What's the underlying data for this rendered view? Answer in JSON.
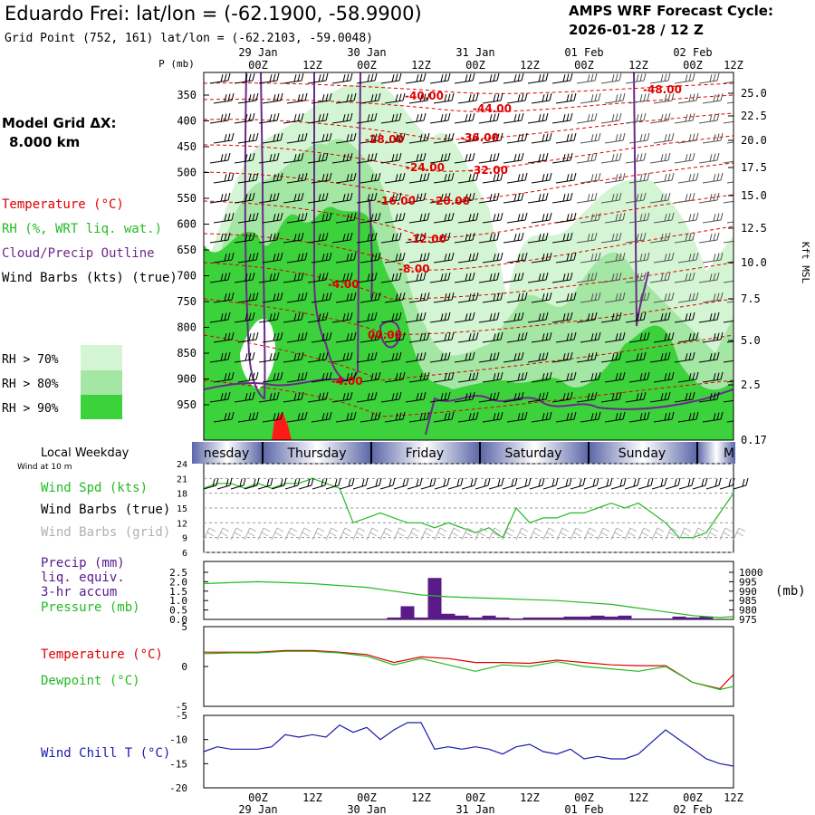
{
  "header": {
    "title": "Eduardo Frei:  lat/lon = (-62.1900, -58.9900)",
    "subtitle": "Grid Point (752, 161) lat/lon = (-62.2103, -59.0048)",
    "cycle_label": "AMPS WRF Forecast Cycle:",
    "cycle_value": "2026-01-28 / 12  Z"
  },
  "left": {
    "pmb_label": "P (mb)",
    "grid_title": "Model Grid ΔX:",
    "grid_value": "8.000 km",
    "leg_temp": "Temperature (°C)",
    "leg_rh": "RH (%, WRT liq. wat.)",
    "leg_cloud": "Cloud/Precip Outline",
    "leg_wind": "Wind Barbs (kts) (true)",
    "rh70": "RH > 70%",
    "rh80": "RH > 80%",
    "rh90": "RH > 90%"
  },
  "colors": {
    "rh70": "#d4f5d4",
    "rh80": "#a4e6a4",
    "rh90": "#3cd23c",
    "temp": "#e00000",
    "cloud": "#6a2a8a",
    "precip": "#5a1a8a",
    "wind_true": "#000000",
    "wind_grid": "#b0b0b0",
    "spd": "#22bb22",
    "dew": "#22bb22",
    "chill": "#1a1aaa",
    "band": "#5a66a8"
  },
  "time_axis": {
    "ticks": [
      "00Z",
      "12Z",
      "00Z",
      "12Z",
      "00Z",
      "12Z",
      "00Z",
      "12Z",
      "00Z",
      "12Z"
    ],
    "dates_top": [
      "29 Jan",
      "30 Jan",
      "31 Jan",
      "01 Feb",
      "02 Feb"
    ],
    "dates_bottom": [
      "29 Jan",
      "30 Jan",
      "31 Jan",
      "01 Feb",
      "02 Feb"
    ]
  },
  "weekday": {
    "label": "Local Weekday",
    "wind10": "Wind at 10 m",
    "days": [
      "nesday",
      "Thursday",
      "Friday",
      "Saturday",
      "Sunday",
      "M"
    ]
  },
  "panels": {
    "wind_spd": "Wind Spd (kts)",
    "wind_true": "Wind Barbs (true)",
    "wind_grid": "Wind Barbs (grid)",
    "precip1": "Precip (mm)",
    "precip2": "liq. equiv.",
    "precip3": "3-hr accum",
    "pressure": "Pressure (mb)",
    "mb_unit": "(mb)",
    "temperature": "Temperature (°C)",
    "dewpoint": "Dewpoint (°C)",
    "chill": "Wind Chill T (°C)",
    "kft": "Kft MSL"
  },
  "chart_data": [
    {
      "type": "heatmap",
      "title": "Vertical cross-section: Temperature, RH, cloud outline, wind barbs",
      "y_pressure_ticks": [
        "350",
        "400",
        "450",
        "500",
        "550",
        "600",
        "650",
        "700",
        "750",
        "800",
        "850",
        "900",
        "950"
      ],
      "y_height_ticks": [
        "25.0",
        "22.5",
        "20.0",
        "17.5",
        "15.0",
        "12.5",
        "10.0",
        "7.5",
        "5.0",
        "2.5",
        "0.17"
      ],
      "temperature_contour_labels": [
        "-40.00",
        "-44.00",
        "-48.00",
        "-28.00",
        "-36.00",
        "-24.00",
        "-32.00",
        "-16.00",
        "-20.00",
        "-12.00",
        "-8.00",
        "-4.00",
        "00.00",
        "-4.00"
      ]
    },
    {
      "type": "line",
      "title": "Wind Spd (kts)",
      "ylim": [
        6,
        24
      ],
      "y_ticks": [
        "24",
        "21",
        "18",
        "15",
        "12",
        "9",
        "6"
      ],
      "x_hours": [
        0,
        3,
        6,
        9,
        12,
        15,
        18,
        21,
        24,
        27,
        30,
        33,
        36,
        39,
        42,
        45,
        48,
        51,
        54,
        57,
        60,
        63,
        66,
        69,
        72,
        75,
        78,
        81,
        84,
        87,
        90,
        93,
        96,
        99,
        102,
        105,
        108,
        111,
        114,
        117
      ],
      "values": [
        19,
        20,
        20,
        19,
        20,
        19,
        20,
        20,
        21,
        20,
        19,
        12,
        13,
        14,
        13,
        12,
        12,
        11,
        12,
        11,
        10,
        11,
        9,
        15,
        12,
        13,
        13,
        14,
        14,
        15,
        16,
        15,
        16,
        14,
        12,
        9,
        9,
        10,
        14,
        18
      ]
    },
    {
      "type": "bar",
      "title": "Precip (mm) liq. equiv. 3-hr accum / Pressure (mb)",
      "precip_ylim": [
        0,
        2.5
      ],
      "precip_ticks": [
        "2.5",
        "2.0",
        "1.5",
        "1.0",
        "0.5",
        "0.0"
      ],
      "pressure_ylim": [
        975,
        1000
      ],
      "pressure_ticks": [
        "1000",
        "995",
        "990",
        "985",
        "980",
        "975"
      ],
      "precip_hours": [
        42,
        45,
        48,
        51,
        54,
        57,
        60,
        63,
        66,
        69,
        72,
        75,
        78,
        81,
        84,
        87,
        90,
        93,
        96,
        99,
        102,
        105,
        108,
        111
      ],
      "precip_values": [
        0.1,
        0.7,
        0.1,
        2.2,
        0.3,
        0.2,
        0.1,
        0.2,
        0.1,
        0.05,
        0.1,
        0.1,
        0.1,
        0.15,
        0.15,
        0.2,
        0.15,
        0.2,
        0.05,
        0.05,
        0.05,
        0.15,
        0.1,
        0.15
      ],
      "pressure_hours": [
        0,
        6,
        12,
        18,
        24,
        30,
        36,
        42,
        48,
        54,
        60,
        66,
        72,
        78,
        84,
        90,
        96,
        102,
        108,
        114,
        117
      ],
      "pressure_values": [
        994,
        994.5,
        995,
        994.5,
        994,
        993,
        992,
        990,
        988,
        987,
        986.5,
        986,
        985.5,
        985,
        984,
        983,
        981,
        979,
        977,
        976,
        976.5
      ]
    },
    {
      "type": "line",
      "title": "Temperature / Dewpoint (°C)",
      "ylim": [
        -5,
        5
      ],
      "y_ticks": [
        "5",
        "0",
        "-5"
      ],
      "x_hours": [
        0,
        6,
        12,
        18,
        24,
        30,
        36,
        42,
        48,
        54,
        60,
        66,
        72,
        78,
        84,
        90,
        96,
        102,
        108,
        114,
        117
      ],
      "temperature": [
        1.8,
        1.8,
        1.8,
        2.0,
        2.0,
        1.8,
        1.5,
        0.5,
        1.2,
        1.0,
        0.5,
        0.5,
        0.4,
        0.8,
        0.5,
        0.2,
        0.1,
        0.1,
        -2.0,
        -2.8,
        -1.0
      ],
      "dewpoint": [
        1.6,
        1.7,
        1.7,
        1.9,
        1.9,
        1.7,
        1.3,
        0.2,
        1.0,
        0.2,
        -0.6,
        0.2,
        0.0,
        0.6,
        0.0,
        -0.3,
        -0.6,
        0.0,
        -2.0,
        -2.9,
        -2.5
      ]
    },
    {
      "type": "line",
      "title": "Wind Chill T (°C)",
      "ylim": [
        -20,
        -5
      ],
      "y_ticks": [
        "-5",
        "-10",
        "-15",
        "-20"
      ],
      "x_hours": [
        0,
        3,
        6,
        9,
        12,
        15,
        18,
        21,
        24,
        27,
        30,
        33,
        36,
        39,
        42,
        45,
        48,
        51,
        54,
        57,
        60,
        63,
        66,
        69,
        72,
        75,
        78,
        81,
        84,
        87,
        90,
        93,
        96,
        99,
        102,
        105,
        108,
        111,
        114,
        117
      ],
      "values": [
        -12.5,
        -11.5,
        -12,
        -12,
        -12,
        -11.5,
        -9,
        -9.5,
        -9,
        -9.5,
        -7,
        -8.5,
        -7.5,
        -10,
        -8,
        -6.5,
        -6.5,
        -12,
        -11.5,
        -12,
        -11.5,
        -12,
        -13,
        -11.5,
        -11,
        -12.5,
        -13,
        -12,
        -14,
        -13.5,
        -14,
        -14,
        -13,
        -10.5,
        -8,
        -10,
        -12,
        -14,
        -15,
        -15.5
      ]
    }
  ]
}
